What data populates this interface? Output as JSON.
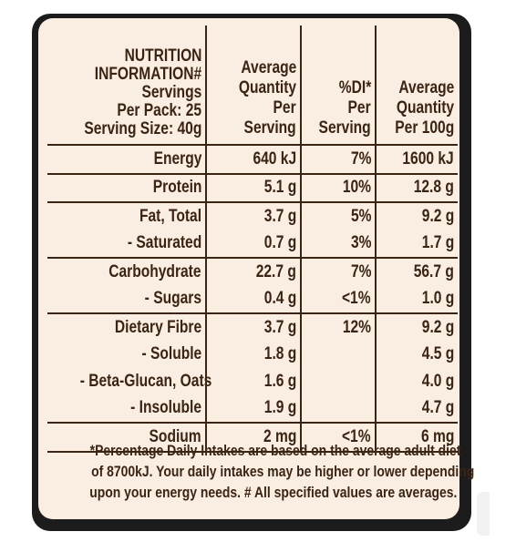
{
  "header": {
    "nutrition_title": "NUTRITION",
    "information_title": "INFORMATION#",
    "servings_label": "Servings",
    "per_pack": "Per Pack: 25",
    "serving_size": "Serving Size: 40g",
    "col1": [
      "Average",
      "Quantity",
      "Per",
      "Serving"
    ],
    "col2": [
      "%DI*",
      "Per",
      "Serving"
    ],
    "col3": [
      "Average",
      "Quantity",
      "Per 100g"
    ]
  },
  "rows": [
    {
      "name": "Energy",
      "per_serving": "640 kJ",
      "di": "7%",
      "per_100g": "1600 kJ"
    },
    {
      "name": "Protein",
      "per_serving": "5.1 g",
      "di": "10%",
      "per_100g": "12.8 g"
    },
    {
      "name": "Fat, Total",
      "per_serving": "3.7 g",
      "di": "5%",
      "per_100g": "9.2 g"
    },
    {
      "name": "- Saturated",
      "per_serving": "0.7 g",
      "di": "3%",
      "per_100g": "1.7 g"
    },
    {
      "name": "Carbohydrate",
      "per_serving": "22.7 g",
      "di": "7%",
      "per_100g": "56.7 g"
    },
    {
      "name": "- Sugars",
      "per_serving": "0.4 g",
      "di": "<1%",
      "per_100g": "1.0 g"
    },
    {
      "name": "Dietary Fibre",
      "per_serving": "3.7 g",
      "di": "12%",
      "per_100g": "9.2 g"
    },
    {
      "name": "- Soluble",
      "per_serving": "1.8 g",
      "di": "",
      "per_100g": "4.5 g"
    },
    {
      "name": "- Beta-Glucan, Oats",
      "per_serving": "1.6 g",
      "di": "",
      "per_100g": "4.0 g"
    },
    {
      "name": "- Insoluble",
      "per_serving": "1.9 g",
      "di": "",
      "per_100g": "4.7 g"
    },
    {
      "name": "Sodium",
      "per_serving": "2 mg",
      "di": "<1%",
      "per_100g": "6 mg"
    }
  ],
  "footnote": {
    "line1": "*Percentage Daily Intakes are based on the average adult diet",
    "line2": "of 8700kJ.  Your daily intakes may be higher or lower depending",
    "line3": "upon your energy needs. # All specified values are averages."
  },
  "colors": {
    "background": "#faeee3",
    "text": "#3a2414",
    "frame": "#1c1c1c"
  }
}
